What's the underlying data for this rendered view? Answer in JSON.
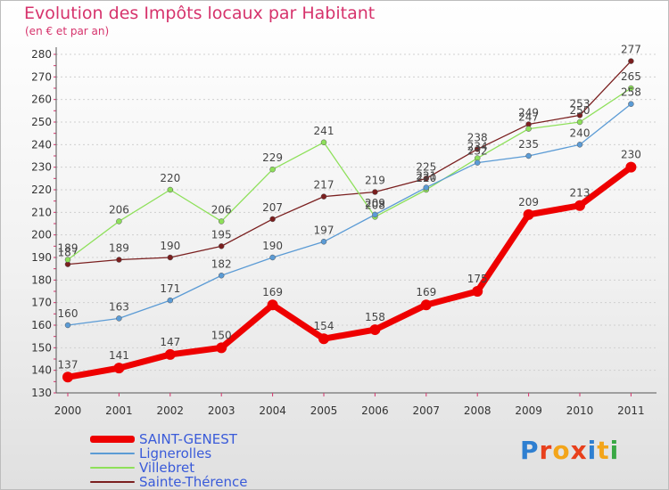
{
  "chart_data": {
    "type": "line",
    "title": "Evolution des Impôts locaux par Habitant",
    "subtitle": "(en € et par an)",
    "xlabel": "",
    "ylabel": "",
    "categories": [
      "2000",
      "2001",
      "2002",
      "2003",
      "2004",
      "2005",
      "2006",
      "2007",
      "2008",
      "2009",
      "2010",
      "2011"
    ],
    "ylim": [
      130,
      280
    ],
    "yticks": [
      130,
      140,
      150,
      160,
      170,
      180,
      190,
      200,
      210,
      220,
      230,
      240,
      250,
      260,
      270,
      280
    ],
    "grid": "horizontal",
    "legend_position": "bottom-left",
    "series": [
      {
        "name": "Sainte-Thérence",
        "color": "#7a1f1f",
        "width": 1.3,
        "values": [
          187,
          189,
          190,
          195,
          207,
          217,
          219,
          225,
          238,
          249,
          253,
          277
        ],
        "labels": [
          "187",
          "189",
          "190",
          "195",
          "207",
          "217",
          "219",
          "225",
          "238",
          "249",
          "253",
          "277"
        ]
      },
      {
        "name": "Villebret",
        "color": "#8ee05a",
        "width": 1.3,
        "values": [
          189,
          206,
          220,
          206,
          229,
          241,
          208,
          220,
          234,
          247,
          250,
          265
        ],
        "labels": [
          "189",
          "206",
          "220",
          "206",
          "229",
          "241",
          "208",
          "220",
          "234",
          "247",
          "250",
          "265"
        ]
      },
      {
        "name": "Lignerolles",
        "color": "#5b9bd5",
        "width": 1.3,
        "values": [
          160,
          163,
          171,
          182,
          190,
          197,
          209,
          221,
          232,
          235,
          240,
          258
        ],
        "labels": [
          "160",
          "163",
          "171",
          "182",
          "190",
          "197",
          "209",
          "221",
          "232",
          "235",
          "240",
          "258"
        ]
      },
      {
        "name": "SAINT-GENEST",
        "color": "#ee0000",
        "width": 7,
        "values": [
          137,
          141,
          147,
          150,
          169,
          154,
          158,
          169,
          175,
          209,
          213,
          230
        ],
        "labels": [
          "137",
          "141",
          "147",
          "150",
          "169",
          "154",
          "158",
          "169",
          "175",
          "209",
          "213",
          "230"
        ]
      }
    ]
  },
  "legend": [
    {
      "label": "SAINT-GENEST",
      "color": "#ee0000"
    },
    {
      "label": "Lignerolles",
      "color": "#5b9bd5"
    },
    {
      "label": "Villebret",
      "color": "#8ee05a"
    },
    {
      "label": "Sainte-Thérence",
      "color": "#7a1f1f"
    }
  ],
  "logo": {
    "text": "Proxiti"
  }
}
